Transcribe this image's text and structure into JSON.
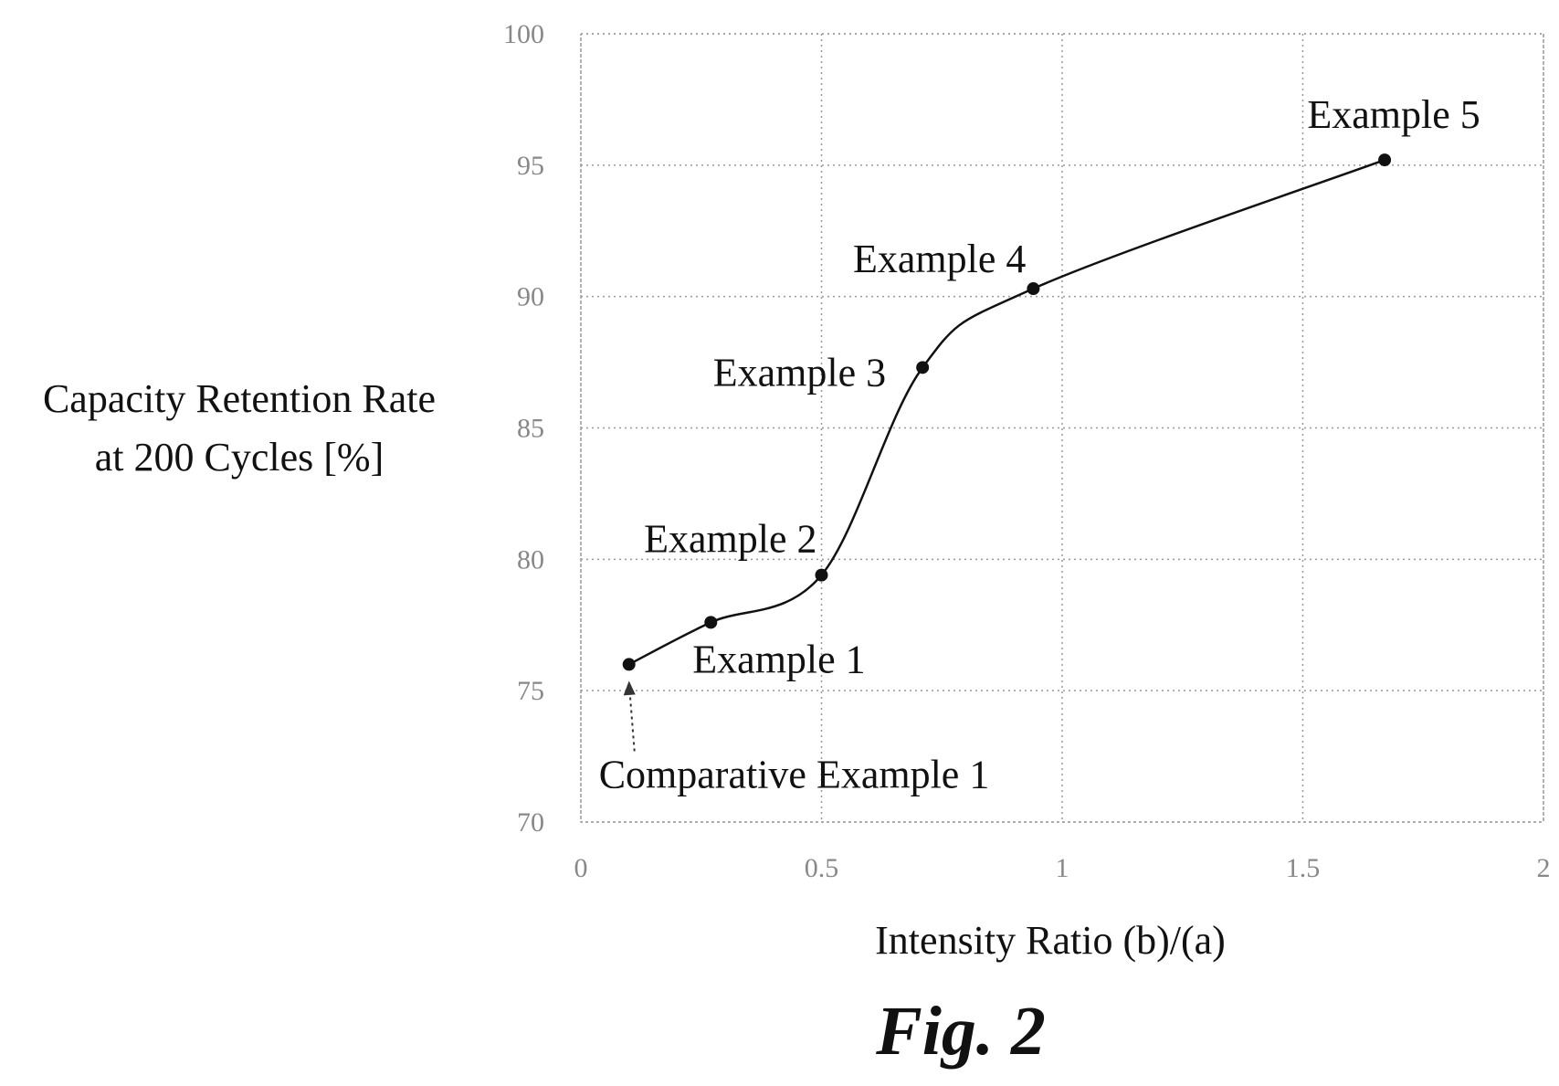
{
  "chart_data": {
    "type": "line",
    "title": "",
    "xlabel": "Intensity Ratio (b)/(a)",
    "ylabel": [
      "Capacity Retention Rate",
      "at 200 Cycles [%]"
    ],
    "xlim": [
      0,
      2
    ],
    "ylim": [
      70,
      100
    ],
    "x_ticks": [
      0,
      0.5,
      1,
      1.5,
      2
    ],
    "x_tick_labels": [
      "0",
      "0.5",
      "1",
      "1.5",
      "2"
    ],
    "y_ticks": [
      70,
      75,
      80,
      85,
      90,
      95,
      100
    ],
    "y_tick_labels": [
      "70",
      "75",
      "80",
      "85",
      "90",
      "95",
      "100"
    ],
    "grid": true,
    "smooth": true,
    "x": [
      0.1,
      0.27,
      0.5,
      0.71,
      0.94,
      1.67
    ],
    "y": [
      76.0,
      77.6,
      79.4,
      87.3,
      90.3,
      95.2
    ],
    "point_labels": [
      "Comparative Example 1",
      "Example 1",
      "Example 2",
      "Example 3",
      "Example 4",
      "Example 5"
    ],
    "annotations": [
      {
        "text": "Comparative Example 1",
        "points_to": [
          0.1,
          76.0
        ],
        "arrow": "dotted"
      }
    ]
  },
  "figure_caption": "Fig. 2"
}
